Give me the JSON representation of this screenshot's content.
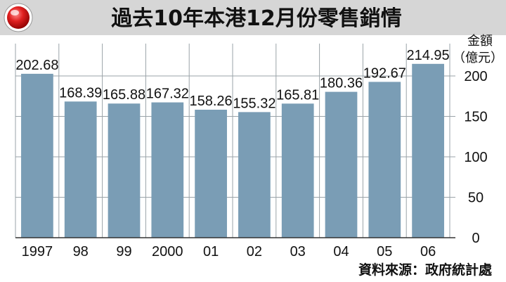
{
  "chart_data": {
    "type": "bar",
    "title": "過去10年本港12月份零售銷情",
    "ylabel": [
      "金額",
      "（億元）"
    ],
    "categories": [
      "1997",
      "98",
      "99",
      "2000",
      "01",
      "02",
      "03",
      "04",
      "05",
      "06"
    ],
    "values": [
      202.68,
      168.39,
      165.88,
      167.32,
      158.26,
      155.32,
      165.81,
      180.36,
      192.67,
      214.95
    ],
    "value_labels": [
      "202.68",
      "168.39",
      "165.88",
      "167.32",
      "158.26",
      "155.32",
      "165.81",
      "180.36",
      "192.67",
      "214.95"
    ],
    "ylim": [
      0,
      240
    ],
    "yticks": [
      0,
      50,
      100,
      150,
      200
    ],
    "ytick_labels": [
      "0",
      "50",
      "100",
      "150",
      "200"
    ],
    "grid": true,
    "colors": {
      "bar": "#7a9db5",
      "grid": "#9aa3a8",
      "title_bar": "#d0d0d0",
      "badge": "#cc1a1a"
    }
  },
  "source": "資料來源：政府統計處"
}
